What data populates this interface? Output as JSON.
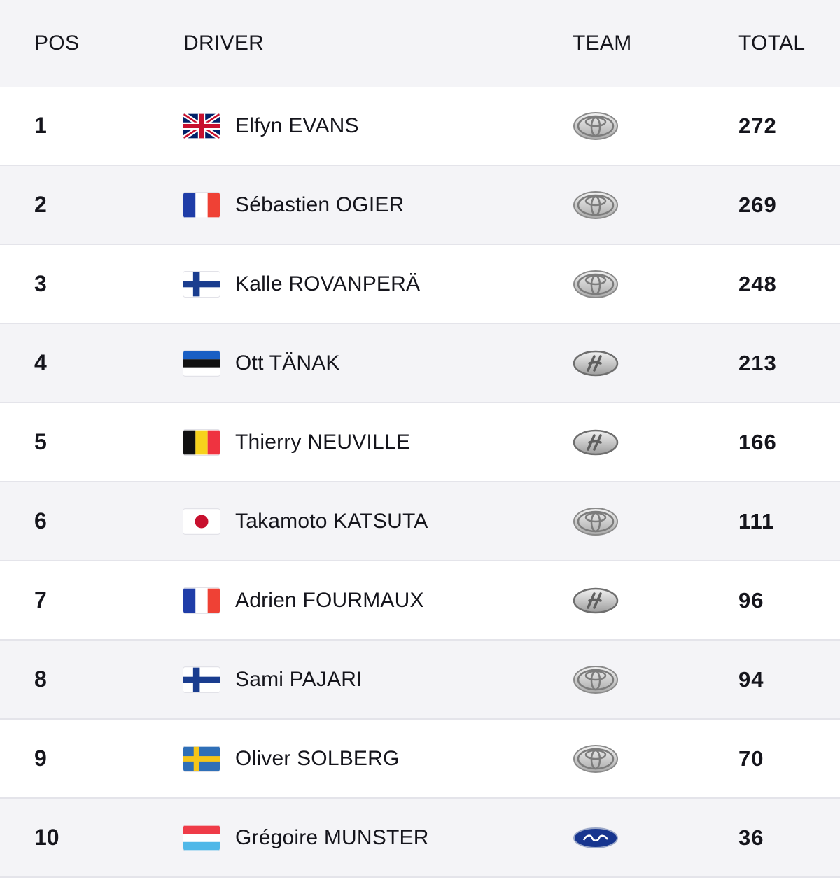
{
  "table": {
    "headers": {
      "pos": "POS",
      "driver": "DRIVER",
      "team": "TEAM",
      "total": "TOTAL"
    },
    "rows": [
      {
        "pos": "1",
        "driver": "Elfyn EVANS",
        "flag": "uk-flag-icon",
        "team_logo": "toyota-logo-icon",
        "total": "272"
      },
      {
        "pos": "2",
        "driver": "Sébastien OGIER",
        "flag": "france-flag-icon",
        "team_logo": "toyota-logo-icon",
        "total": "269"
      },
      {
        "pos": "3",
        "driver": "Kalle ROVANPERÄ",
        "flag": "finland-flag-icon",
        "team_logo": "toyota-logo-icon",
        "total": "248"
      },
      {
        "pos": "4",
        "driver": "Ott TÄNAK",
        "flag": "estonia-flag-icon",
        "team_logo": "hyundai-logo-icon",
        "total": "213"
      },
      {
        "pos": "5",
        "driver": "Thierry NEUVILLE",
        "flag": "belgium-flag-icon",
        "team_logo": "hyundai-logo-icon",
        "total": "166"
      },
      {
        "pos": "6",
        "driver": "Takamoto KATSUTA",
        "flag": "japan-flag-icon",
        "team_logo": "toyota-logo-icon",
        "total": "111"
      },
      {
        "pos": "7",
        "driver": "Adrien FOURMAUX",
        "flag": "france-flag-icon",
        "team_logo": "hyundai-logo-icon",
        "total": "96"
      },
      {
        "pos": "8",
        "driver": "Sami PAJARI",
        "flag": "finland-flag-icon",
        "team_logo": "toyota-logo-icon",
        "total": "94"
      },
      {
        "pos": "9",
        "driver": "Oliver SOLBERG",
        "flag": "sweden-flag-icon",
        "team_logo": "toyota-logo-icon",
        "total": "70"
      },
      {
        "pos": "10",
        "driver": "Grégoire MUNSTER",
        "flag": "luxembourg-flag-icon",
        "team_logo": "ford-logo-icon",
        "total": "36"
      }
    ]
  },
  "colors": {
    "header_bg": "#f4f4f7",
    "alt_row_bg": "#f4f4f7",
    "row_border": "#e4e4ea",
    "text": "#15151c"
  }
}
